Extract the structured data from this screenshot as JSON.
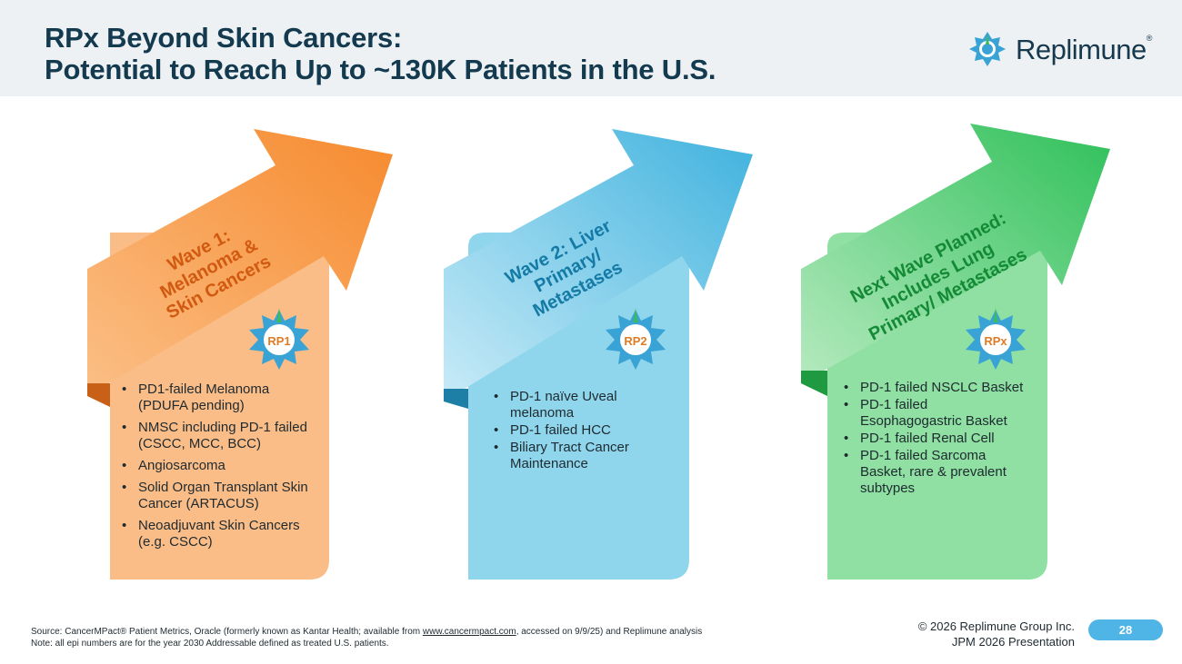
{
  "header": {
    "title_line1": "RPx Beyond Skin Cancers:",
    "title_line2": "Potential to Reach Up to ~130K Patients in the U.S.",
    "logo_text": "Replimune",
    "logo_mark": "®"
  },
  "waves": [
    {
      "label_lines": [
        "Wave 1:",
        "Melanoma &",
        "Skin Cancers"
      ],
      "badge": "RP1",
      "color": "#f39a4f",
      "items": [
        "PD1-failed Melanoma (PDUFA pending)",
        "NMSC including PD-1 failed (CSCC, MCC, BCC)",
        "Angiosarcoma",
        "Solid Organ Transplant Skin Cancer (ARTACUS)",
        "Neoadjuvant Skin Cancers (e.g. CSCC)"
      ]
    },
    {
      "label_lines": [
        "Wave 2: Liver",
        "Primary/",
        "Metastases"
      ],
      "badge": "RP2",
      "color": "#59bde0",
      "items": [
        "PD-1 naïve Uveal melanoma",
        "PD-1 failed HCC",
        "Biliary Tract Cancer Maintenance"
      ]
    },
    {
      "label_lines": [
        "Next Wave Planned:",
        "Includes Lung",
        "Primary/ Metastases"
      ],
      "badge": "RPx",
      "color": "#45c86a",
      "items": [
        "PD-1 failed NSCLC Basket",
        "PD-1 failed Esophagogastric Basket",
        "PD-1 failed Renal Cell",
        "PD-1 failed Sarcoma Basket, rare & prevalent subtypes"
      ]
    }
  ],
  "footer": {
    "source_prefix": "Source: CancerMPact® Patient Metrics, Oracle (formerly known as Kantar Health; available from ",
    "source_link": "www.cancermpact.com",
    "source_suffix": ", accessed on 9/9/25) and Replimune analysis",
    "note": "Note: all epi numbers are for the year 2030 Addressable defined as treated U.S. patients.",
    "copyright_line1": "© 2026 Replimune Group Inc.",
    "copyright_line2": "JPM 2026 Presentation",
    "page_number": "28"
  },
  "colors": {
    "title": "#133a4f",
    "header_bg": "#eef1f4",
    "page_badge": "#4fb4e6"
  }
}
